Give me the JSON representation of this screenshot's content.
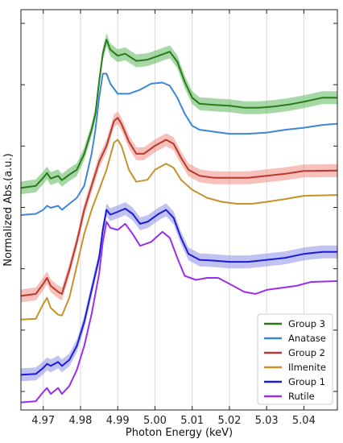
{
  "chart_data": {
    "type": "line",
    "xlabel": "Photon Energy (keV)",
    "ylabel": "Normalized Abs.(a.u.)",
    "xlim": [
      4.964,
      5.049
    ],
    "ylim": [
      0,
      1
    ],
    "x_ticks": [
      4.97,
      4.98,
      4.99,
      5.0,
      5.01,
      5.02,
      5.03,
      5.04
    ],
    "x_tick_labels": [
      "4.97",
      "4.98",
      "4.99",
      "5.00",
      "5.01",
      "5.02",
      "5.03",
      "5.04"
    ],
    "y_ticks_unlabeled": 7,
    "grid": "vertical",
    "legend_position": "bottom-right",
    "series": [
      {
        "name": "Group 3",
        "color": "#2a7a1b",
        "band": true,
        "band_color": "#5cb85c",
        "points": [
          [
            4.964,
            0.555
          ],
          [
            4.968,
            0.56
          ],
          [
            4.97,
            0.58
          ],
          [
            4.971,
            0.592
          ],
          [
            4.972,
            0.578
          ],
          [
            4.974,
            0.585
          ],
          [
            4.975,
            0.574
          ],
          [
            4.977,
            0.588
          ],
          [
            4.979,
            0.6
          ],
          [
            4.981,
            0.64
          ],
          [
            4.983,
            0.7
          ],
          [
            4.984,
            0.74
          ],
          [
            4.985,
            0.82
          ],
          [
            4.986,
            0.89
          ],
          [
            4.987,
            0.925
          ],
          [
            4.988,
            0.9
          ],
          [
            4.99,
            0.885
          ],
          [
            4.992,
            0.89
          ],
          [
            4.995,
            0.872
          ],
          [
            4.998,
            0.875
          ],
          [
            5.001,
            0.885
          ],
          [
            5.004,
            0.895
          ],
          [
            5.006,
            0.87
          ],
          [
            5.008,
            0.82
          ],
          [
            5.01,
            0.78
          ],
          [
            5.012,
            0.765
          ],
          [
            5.016,
            0.762
          ],
          [
            5.02,
            0.76
          ],
          [
            5.024,
            0.755
          ],
          [
            5.028,
            0.755
          ],
          [
            5.032,
            0.758
          ],
          [
            5.036,
            0.763
          ],
          [
            5.04,
            0.77
          ],
          [
            5.045,
            0.78
          ],
          [
            5.049,
            0.78
          ]
        ]
      },
      {
        "name": "Anatase",
        "color": "#3d87d6",
        "band": false,
        "points": [
          [
            4.964,
            0.487
          ],
          [
            4.968,
            0.49
          ],
          [
            4.97,
            0.5
          ],
          [
            4.971,
            0.51
          ],
          [
            4.972,
            0.505
          ],
          [
            4.974,
            0.51
          ],
          [
            4.975,
            0.5
          ],
          [
            4.977,
            0.515
          ],
          [
            4.979,
            0.53
          ],
          [
            4.981,
            0.56
          ],
          [
            4.983,
            0.64
          ],
          [
            4.984,
            0.7
          ],
          [
            4.985,
            0.78
          ],
          [
            4.986,
            0.84
          ],
          [
            4.987,
            0.84
          ],
          [
            4.988,
            0.815
          ],
          [
            4.99,
            0.79
          ],
          [
            4.993,
            0.79
          ],
          [
            4.996,
            0.8
          ],
          [
            4.999,
            0.815
          ],
          [
            5.002,
            0.818
          ],
          [
            5.004,
            0.81
          ],
          [
            5.006,
            0.78
          ],
          [
            5.008,
            0.74
          ],
          [
            5.01,
            0.71
          ],
          [
            5.012,
            0.7
          ],
          [
            5.016,
            0.695
          ],
          [
            5.02,
            0.69
          ],
          [
            5.025,
            0.69
          ],
          [
            5.03,
            0.693
          ],
          [
            5.035,
            0.7
          ],
          [
            5.04,
            0.705
          ],
          [
            5.045,
            0.712
          ],
          [
            5.049,
            0.715
          ]
        ]
      },
      {
        "name": "Group 2",
        "color": "#b83a2e",
        "band": true,
        "band_color": "#f08c84",
        "points": [
          [
            4.964,
            0.285
          ],
          [
            4.968,
            0.29
          ],
          [
            4.97,
            0.315
          ],
          [
            4.971,
            0.33
          ],
          [
            4.972,
            0.31
          ],
          [
            4.974,
            0.295
          ],
          [
            4.975,
            0.29
          ],
          [
            4.977,
            0.35
          ],
          [
            4.979,
            0.42
          ],
          [
            4.981,
            0.5
          ],
          [
            4.983,
            0.56
          ],
          [
            4.985,
            0.62
          ],
          [
            4.987,
            0.66
          ],
          [
            4.989,
            0.722
          ],
          [
            4.99,
            0.73
          ],
          [
            4.991,
            0.715
          ],
          [
            4.993,
            0.67
          ],
          [
            4.995,
            0.64
          ],
          [
            4.997,
            0.64
          ],
          [
            5.0,
            0.66
          ],
          [
            5.003,
            0.675
          ],
          [
            5.005,
            0.665
          ],
          [
            5.007,
            0.63
          ],
          [
            5.009,
            0.6
          ],
          [
            5.012,
            0.585
          ],
          [
            5.016,
            0.58
          ],
          [
            5.02,
            0.58
          ],
          [
            5.025,
            0.58
          ],
          [
            5.03,
            0.585
          ],
          [
            5.035,
            0.59
          ],
          [
            5.04,
            0.597
          ],
          [
            5.049,
            0.598
          ]
        ]
      },
      {
        "name": "Ilmenite",
        "color": "#c8922a",
        "band": false,
        "points": [
          [
            4.964,
            0.226
          ],
          [
            4.968,
            0.228
          ],
          [
            4.97,
            0.265
          ],
          [
            4.971,
            0.28
          ],
          [
            4.972,
            0.255
          ],
          [
            4.974,
            0.238
          ],
          [
            4.975,
            0.236
          ],
          [
            4.977,
            0.28
          ],
          [
            4.979,
            0.36
          ],
          [
            4.981,
            0.44
          ],
          [
            4.983,
            0.5
          ],
          [
            4.985,
            0.55
          ],
          [
            4.987,
            0.6
          ],
          [
            4.989,
            0.668
          ],
          [
            4.99,
            0.675
          ],
          [
            4.991,
            0.66
          ],
          [
            4.993,
            0.6
          ],
          [
            4.995,
            0.57
          ],
          [
            4.998,
            0.575
          ],
          [
            5.0,
            0.6
          ],
          [
            5.003,
            0.615
          ],
          [
            5.005,
            0.605
          ],
          [
            5.007,
            0.575
          ],
          [
            5.01,
            0.55
          ],
          [
            5.014,
            0.53
          ],
          [
            5.018,
            0.52
          ],
          [
            5.022,
            0.515
          ],
          [
            5.026,
            0.515
          ],
          [
            5.03,
            0.52
          ],
          [
            5.035,
            0.527
          ],
          [
            5.04,
            0.535
          ],
          [
            5.049,
            0.537
          ]
        ]
      },
      {
        "name": "Group 1",
        "color": "#1c1cd6",
        "band": true,
        "band_color": "#8f8fe8",
        "points": [
          [
            4.964,
            0.088
          ],
          [
            4.968,
            0.09
          ],
          [
            4.97,
            0.105
          ],
          [
            4.971,
            0.115
          ],
          [
            4.972,
            0.11
          ],
          [
            4.974,
            0.12
          ],
          [
            4.975,
            0.11
          ],
          [
            4.977,
            0.125
          ],
          [
            4.979,
            0.16
          ],
          [
            4.981,
            0.22
          ],
          [
            4.983,
            0.3
          ],
          [
            4.985,
            0.38
          ],
          [
            4.986,
            0.45
          ],
          [
            4.987,
            0.5
          ],
          [
            4.988,
            0.488
          ],
          [
            4.99,
            0.495
          ],
          [
            4.992,
            0.503
          ],
          [
            4.994,
            0.49
          ],
          [
            4.996,
            0.465
          ],
          [
            4.998,
            0.47
          ],
          [
            5.001,
            0.49
          ],
          [
            5.003,
            0.5
          ],
          [
            5.005,
            0.48
          ],
          [
            5.007,
            0.43
          ],
          [
            5.009,
            0.39
          ],
          [
            5.012,
            0.375
          ],
          [
            5.016,
            0.373
          ],
          [
            5.02,
            0.37
          ],
          [
            5.025,
            0.37
          ],
          [
            5.03,
            0.375
          ],
          [
            5.035,
            0.38
          ],
          [
            5.04,
            0.39
          ],
          [
            5.045,
            0.395
          ],
          [
            5.049,
            0.395
          ]
        ]
      },
      {
        "name": "Rutile",
        "color": "#9a2ef0",
        "band": false,
        "points": [
          [
            4.964,
            0.019
          ],
          [
            4.968,
            0.022
          ],
          [
            4.97,
            0.045
          ],
          [
            4.971,
            0.055
          ],
          [
            4.972,
            0.04
          ],
          [
            4.974,
            0.055
          ],
          [
            4.975,
            0.04
          ],
          [
            4.977,
            0.06
          ],
          [
            4.979,
            0.1
          ],
          [
            4.981,
            0.16
          ],
          [
            4.983,
            0.24
          ],
          [
            4.985,
            0.34
          ],
          [
            4.986,
            0.42
          ],
          [
            4.987,
            0.47
          ],
          [
            4.988,
            0.455
          ],
          [
            4.99,
            0.45
          ],
          [
            4.992,
            0.465
          ],
          [
            4.994,
            0.44
          ],
          [
            4.996,
            0.41
          ],
          [
            4.999,
            0.42
          ],
          [
            5.002,
            0.445
          ],
          [
            5.004,
            0.43
          ],
          [
            5.006,
            0.38
          ],
          [
            5.008,
            0.335
          ],
          [
            5.011,
            0.325
          ],
          [
            5.014,
            0.33
          ],
          [
            5.017,
            0.33
          ],
          [
            5.02,
            0.315
          ],
          [
            5.024,
            0.295
          ],
          [
            5.027,
            0.29
          ],
          [
            5.03,
            0.3
          ],
          [
            5.034,
            0.305
          ],
          [
            5.038,
            0.31
          ],
          [
            5.042,
            0.32
          ],
          [
            5.049,
            0.322
          ]
        ]
      }
    ],
    "legend": [
      "Group 3",
      "Anatase",
      "Group 2",
      "Ilmenite",
      "Group 1",
      "Rutile"
    ]
  }
}
